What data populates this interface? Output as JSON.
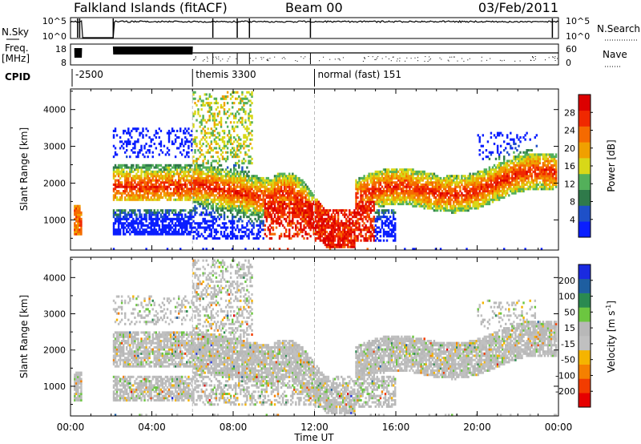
{
  "header": {
    "station": "Falkland Islands (fitACF)",
    "beam": "Beam 00",
    "date": "03/Feb/2011"
  },
  "nsky_panel": {
    "left_label": "N.Sky",
    "right_label": "N.Search",
    "left_ticks": [
      "10^5",
      "10^0"
    ],
    "right_ticks": [
      "10^5",
      "10^0"
    ]
  },
  "freq_panel": {
    "left_label_line1": "Freq.",
    "left_label_line2": "[MHz]",
    "right_label": "Nave",
    "left_ticks": [
      "18",
      "8"
    ],
    "right_ticks": [
      "60",
      "0"
    ]
  },
  "cpid": {
    "label": "CPID",
    "segments": [
      {
        "start_hour": 0.0,
        "text": "-2500"
      },
      {
        "start_hour": 6.0,
        "text": "themis 3300"
      },
      {
        "start_hour": 12.0,
        "text": "normal (fast) 151"
      }
    ]
  },
  "time_axis": {
    "ticks": [
      "00:00",
      "04:00",
      "08:00",
      "12:00",
      "16:00",
      "20:00",
      "00:00"
    ],
    "tick_hours": [
      0,
      4,
      8,
      12,
      16,
      20,
      24
    ],
    "xlabel": "Time UT"
  },
  "legend_colors": {
    "power": [
      "#0a1eff",
      "#1e50c8",
      "#2f7a4a",
      "#53b05a",
      "#d8d818",
      "#f0a000",
      "#f56a00",
      "#f02800",
      "#dc0000"
    ],
    "velocity": [
      "#e60000",
      "#f23c00",
      "#f58000",
      "#f5b400",
      "#c0c0c0",
      "#b8b8b8",
      "#6cc640",
      "#2a8a50",
      "#1e5ea0",
      "#1a2ae0"
    ]
  },
  "chart_data": [
    {
      "type": "heatmap",
      "title": "",
      "xlabel": "Time UT",
      "ylabel": "Slant Range [km]",
      "xlim": [
        0,
        24
      ],
      "ylim": [
        180,
        4560
      ],
      "yticks": [
        1000,
        2000,
        3000,
        4000
      ],
      "colorbar": {
        "label": "Power [dB]",
        "ticks": [
          "28",
          "24",
          "20",
          "16",
          "12",
          "8",
          "4"
        ],
        "range": [
          0,
          30
        ]
      },
      "reference_hours": [
        6.0,
        12.0
      ]
    },
    {
      "type": "heatmap",
      "title": "",
      "xlabel": "Time UT",
      "ylabel": "Slant Range [km]",
      "xlim": [
        0,
        24
      ],
      "ylim": [
        180,
        4560
      ],
      "yticks": [
        1000,
        2000,
        3000,
        4000
      ],
      "colorbar": {
        "label": "Velocity [m s",
        "label_sup": "-1",
        "label_end": "]",
        "ticks": [
          "200",
          "100",
          "50",
          "15",
          "-15",
          "-50",
          "-100",
          "-200"
        ],
        "range": [
          -250,
          250
        ]
      },
      "reference_hours": [
        6.0,
        12.0
      ]
    }
  ]
}
